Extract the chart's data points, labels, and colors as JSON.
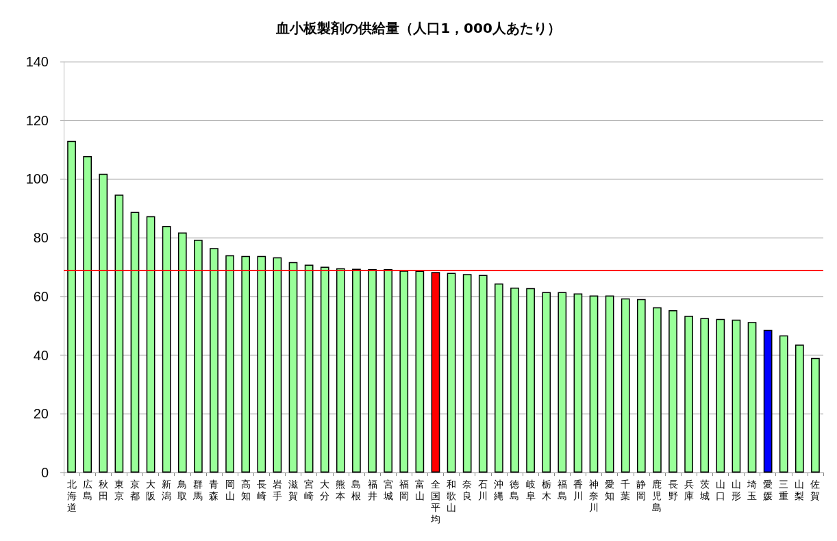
{
  "chart_data": {
    "type": "bar",
    "title": "血小板製剤の供給量（人口1，000人あたり）",
    "categories": [
      "北海道",
      "広島",
      "秋田",
      "東京",
      "京都",
      "大阪",
      "新潟",
      "鳥取",
      "群馬",
      "青森",
      "岡山",
      "高知",
      "長崎",
      "岩手",
      "滋賀",
      "宮崎",
      "大分",
      "熊本",
      "島根",
      "福井",
      "宮城",
      "福岡",
      "富山",
      "全国平均",
      "和歌山",
      "奈良",
      "石川",
      "沖縄",
      "徳島",
      "岐阜",
      "栃木",
      "福島",
      "香川",
      "神奈川",
      "愛知",
      "千葉",
      "静岡",
      "鹿児島",
      "長野",
      "兵庫",
      "茨城",
      "山口",
      "山形",
      "埼玉",
      "愛媛",
      "三重",
      "山梨",
      "佐賀"
    ],
    "values": [
      113,
      107.8,
      101.8,
      94.7,
      88.8,
      87.3,
      84,
      81.8,
      79.3,
      76.5,
      74,
      73.8,
      73.8,
      73.3,
      71.7,
      70.8,
      70.1,
      69.6,
      69.4,
      69.3,
      69.3,
      68.8,
      68.7,
      68.3,
      68,
      67.6,
      67.3,
      64.4,
      63,
      62.8,
      61.5,
      61.5,
      61,
      60.3,
      60.3,
      59.3,
      59.1,
      56.3,
      55.3,
      53.4,
      52.6,
      52.3,
      52.1,
      51.3,
      48.6,
      46.7,
      43.6,
      39
    ],
    "colors": [
      "#99ff99",
      "#99ff99",
      "#99ff99",
      "#99ff99",
      "#99ff99",
      "#99ff99",
      "#99ff99",
      "#99ff99",
      "#99ff99",
      "#99ff99",
      "#99ff99",
      "#99ff99",
      "#99ff99",
      "#99ff99",
      "#99ff99",
      "#99ff99",
      "#99ff99",
      "#99ff99",
      "#99ff99",
      "#99ff99",
      "#99ff99",
      "#99ff99",
      "#99ff99",
      "#ff0000",
      "#99ff99",
      "#99ff99",
      "#99ff99",
      "#99ff99",
      "#99ff99",
      "#99ff99",
      "#99ff99",
      "#99ff99",
      "#99ff99",
      "#99ff99",
      "#99ff99",
      "#99ff99",
      "#99ff99",
      "#99ff99",
      "#99ff99",
      "#99ff99",
      "#99ff99",
      "#99ff99",
      "#99ff99",
      "#99ff99",
      "#0000ff",
      "#99ff99",
      "#99ff99",
      "#99ff99"
    ],
    "ylim": [
      0,
      140
    ],
    "yticks": [
      0,
      20,
      40,
      60,
      80,
      100,
      120,
      140
    ],
    "grid": "y",
    "ref_lines": [
      {
        "axis": "y",
        "value": 68.8,
        "color": "#ff0000"
      }
    ]
  }
}
